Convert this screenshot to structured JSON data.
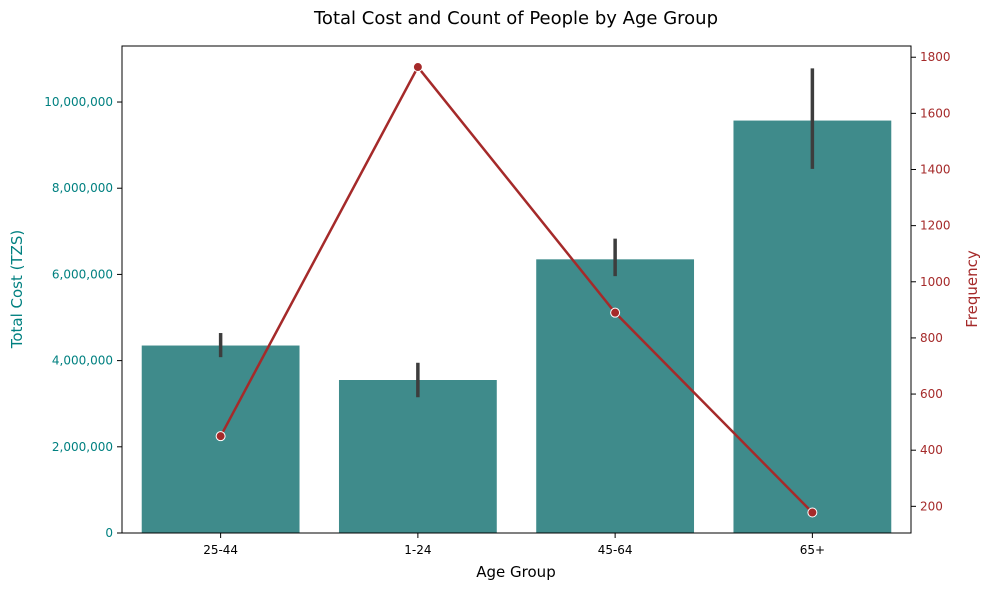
{
  "chart_data": {
    "type": "bar",
    "title": "Total Cost and Count of People by Age Group",
    "xlabel": "Age Group",
    "categories": [
      "25-44",
      "1-24",
      "45-64",
      "65+"
    ],
    "series": [
      {
        "kind": "bar",
        "axis": "left",
        "values": [
          4350000,
          3550000,
          6350000,
          9570000
        ],
        "error_low": [
          4080000,
          3150000,
          5960000,
          8450000
        ],
        "error_high": [
          4640000,
          3950000,
          6830000,
          10780000
        ],
        "color": "#3f8b8b"
      },
      {
        "kind": "line",
        "axis": "right",
        "values": [
          450,
          1765,
          890,
          178
        ],
        "color": "#a52a2a"
      }
    ],
    "ylabel_left": "Total Cost (TZS)",
    "ylabel_right": "Frequency",
    "ylim_left": [
      0,
      11300000
    ],
    "ylim_right": [
      105,
      1840
    ],
    "yticks_left": [
      0,
      2000000,
      4000000,
      6000000,
      8000000,
      10000000
    ],
    "yticks_left_labels": [
      "0",
      "2,000,000",
      "4,000,000",
      "6,000,000",
      "8,000,000",
      "10,000,000"
    ],
    "yticks_right": [
      200,
      400,
      600,
      800,
      1000,
      1200,
      1400,
      1600,
      1800
    ],
    "yticks_right_labels": [
      "200",
      "400",
      "600",
      "800",
      "1000",
      "1200",
      "1400",
      "1600",
      "1800"
    ],
    "left_axis_color": "#008080",
    "right_axis_color": "#a52a2a",
    "error_bar_color": "#3d3d3d",
    "grid": false
  }
}
